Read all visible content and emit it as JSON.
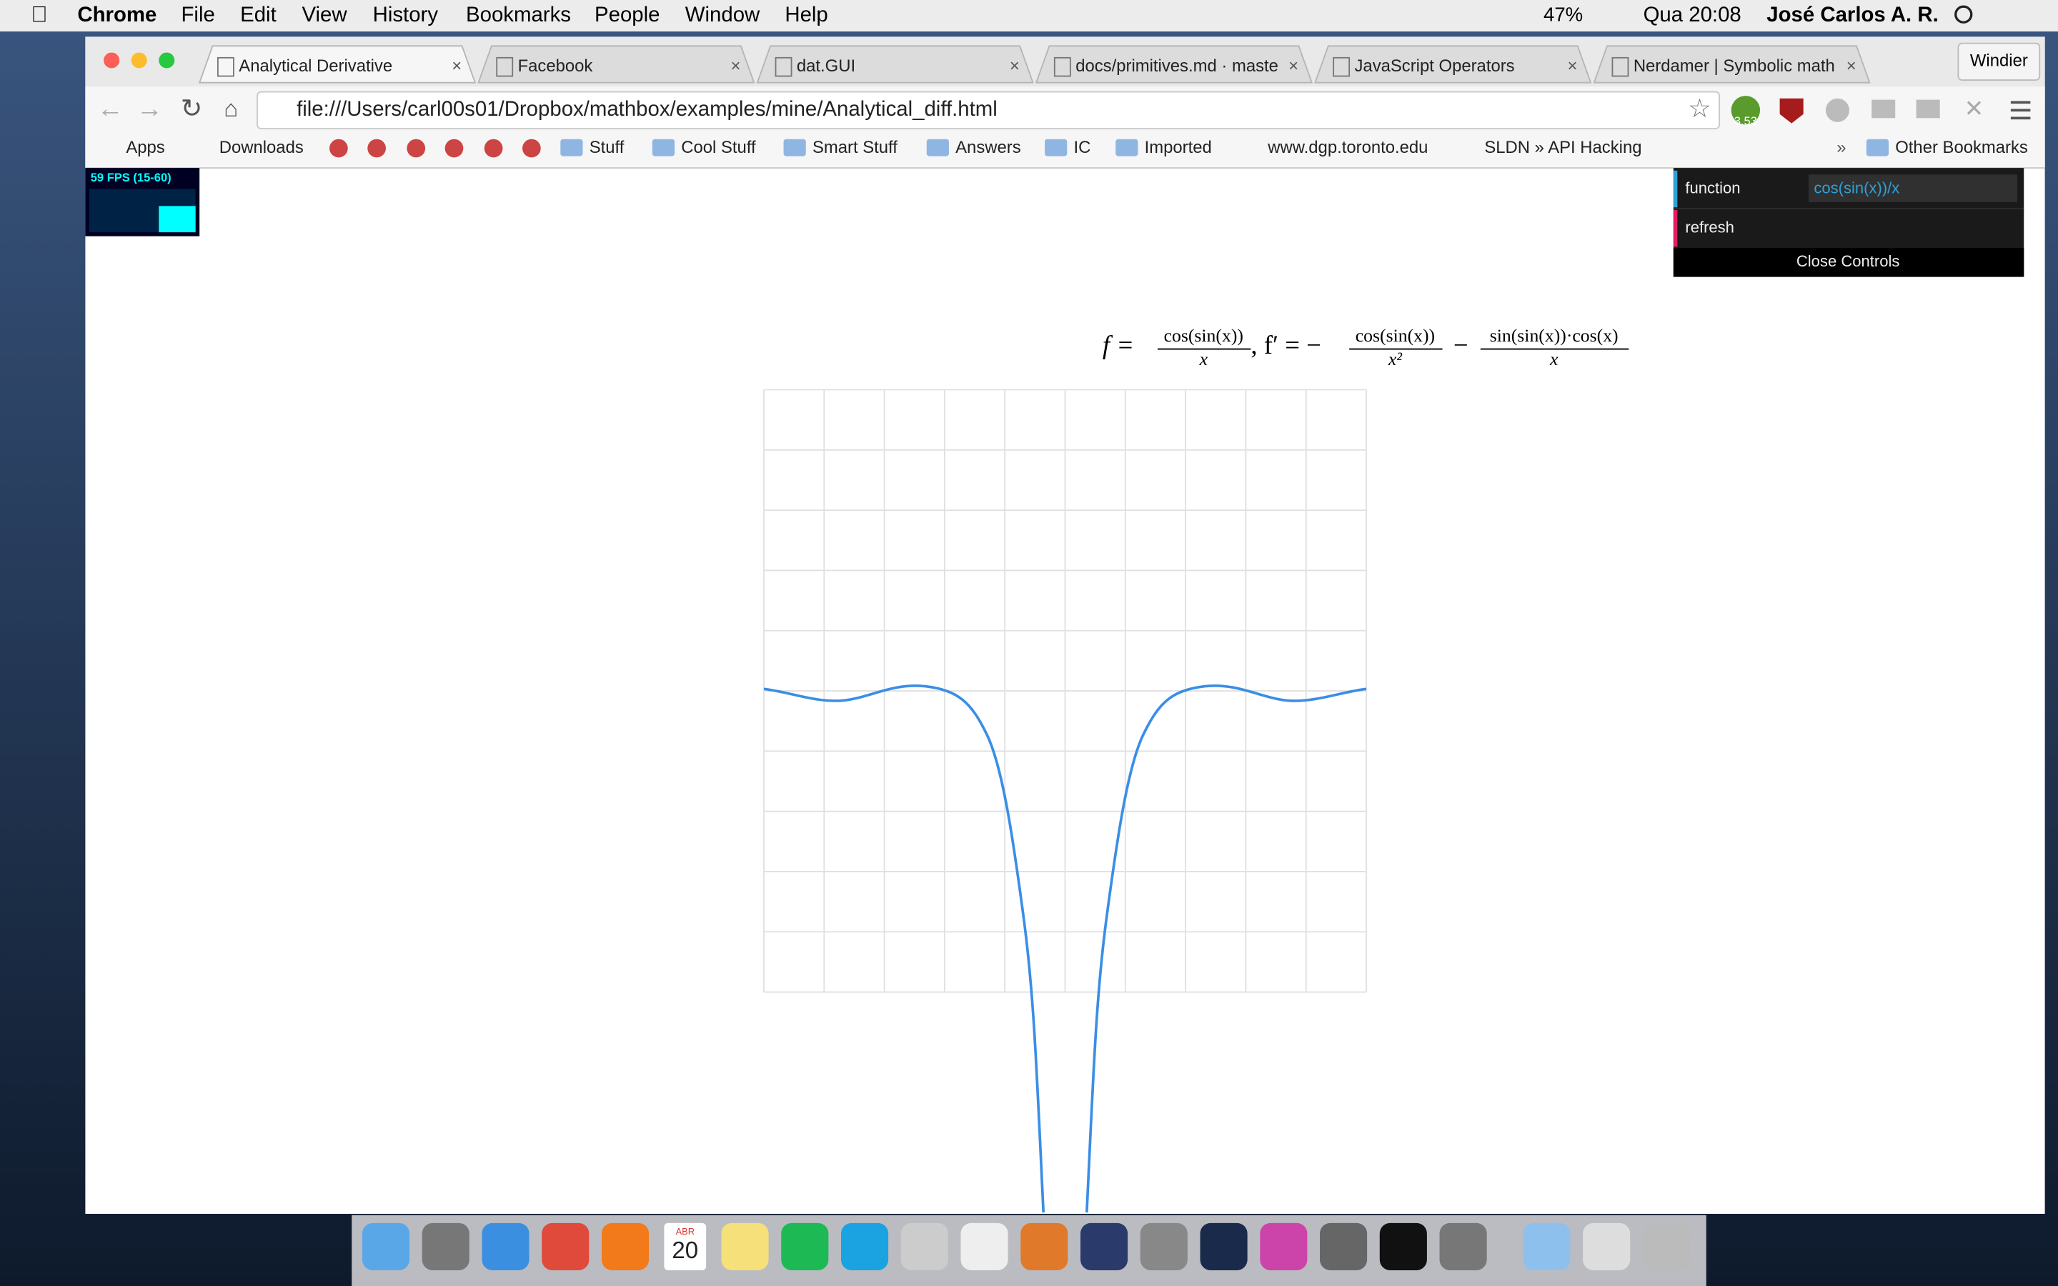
{
  "menu_bar": {
    "app": "Chrome",
    "menus": [
      "File",
      "Edit",
      "View",
      "History",
      "Bookmarks",
      "People",
      "Window",
      "Help"
    ],
    "battery": "47%",
    "clock": "Qua 20:08",
    "user": "José Carlos A. R."
  },
  "tabs": [
    "Analytical Derivative",
    "Facebook",
    "dat.GUI",
    "docs/primitives.md · maste",
    "JavaScript Operators",
    "Nerdamer | Symbolic math"
  ],
  "profile": "Windier",
  "address": "file:///Users/carl00s01/Dropbox/mathbox/examples/mine/Analytical_diff.html",
  "extension_badge": "3.53",
  "bookmarks": [
    "Apps",
    "Downloads",
    "Stuff",
    "Cool Stuff",
    "Smart Stuff",
    "Answers",
    "IC",
    "Imported",
    "www.dgp.toronto.edu",
    "SLDN » API Hacking",
    "Other Bookmarks"
  ],
  "stats": "59 FPS (15-60)",
  "gui": {
    "function_label": "function",
    "function_value": "cos(sin(x))/x",
    "refresh": "refresh",
    "close": "Close Controls"
  },
  "formula": {
    "f": "f =",
    "f_num": "cos(sin(x))",
    "f_den": "x",
    "fp": ", f′ = −",
    "fp_num1": "cos(sin(x))",
    "fp_den1": "x²",
    "minus": "−",
    "fp_num2": "sin(sin(x))·cos(x)",
    "fp_den2": "x"
  },
  "dock": {
    "calendar_month": "ABR",
    "calendar_day": "20"
  }
}
